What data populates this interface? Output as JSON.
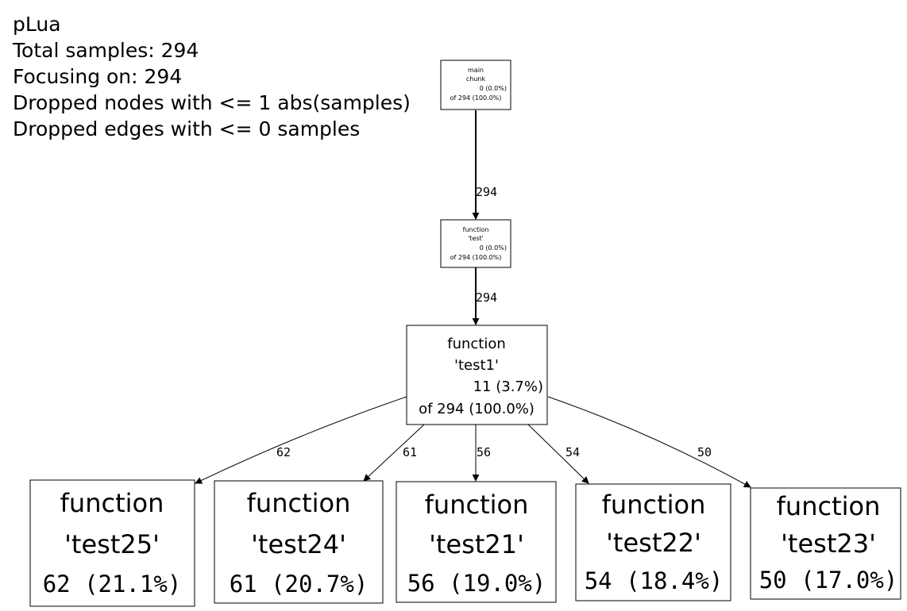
{
  "header": {
    "title": "pLua",
    "total_samples": "Total samples: 294",
    "focusing": "Focusing on: 294",
    "dropped_nodes": "Dropped nodes with <= 1 abs(samples)",
    "dropped_edges": "Dropped edges with <= 0 samples"
  },
  "nodes": {
    "main": {
      "line1": "main",
      "line2": "chunk",
      "flat": "0 (0.0%)",
      "cum": "of 294 (100.0%)"
    },
    "test": {
      "line1": "function",
      "line2": "'test'",
      "flat": "0 (0.0%)",
      "cum": "of 294 (100.0%)"
    },
    "test1": {
      "line1": "function",
      "line2": "'test1'",
      "flat": "11 (3.7%)",
      "cum": "of 294 (100.0%)"
    },
    "test25": {
      "line1": "function",
      "line2": "'test25'",
      "flat": "62 (21.1%)"
    },
    "test24": {
      "line1": "function",
      "line2": "'test24'",
      "flat": "61 (20.7%)"
    },
    "test21": {
      "line1": "function",
      "line2": "'test21'",
      "flat": "56 (19.0%)"
    },
    "test22": {
      "line1": "function",
      "line2": "'test22'",
      "flat": "54 (18.4%)"
    },
    "test23": {
      "line1": "function",
      "line2": "'test23'",
      "flat": "50 (17.0%)"
    }
  },
  "edges": {
    "main_test": "294",
    "test_test1": "294",
    "test1_test25": "62",
    "test1_test24": "61",
    "test1_test21": "56",
    "test1_test22": "54",
    "test1_test23": "50"
  }
}
